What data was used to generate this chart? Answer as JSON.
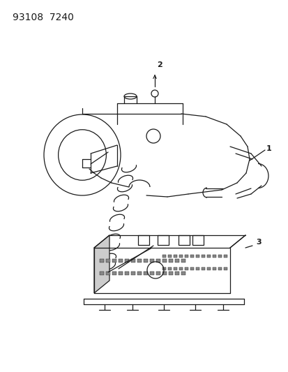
{
  "title_text": "93108  7240",
  "bg_color": "#ffffff",
  "line_color": "#1a1a1a",
  "label1": "1",
  "label2": "2",
  "label3": "3"
}
